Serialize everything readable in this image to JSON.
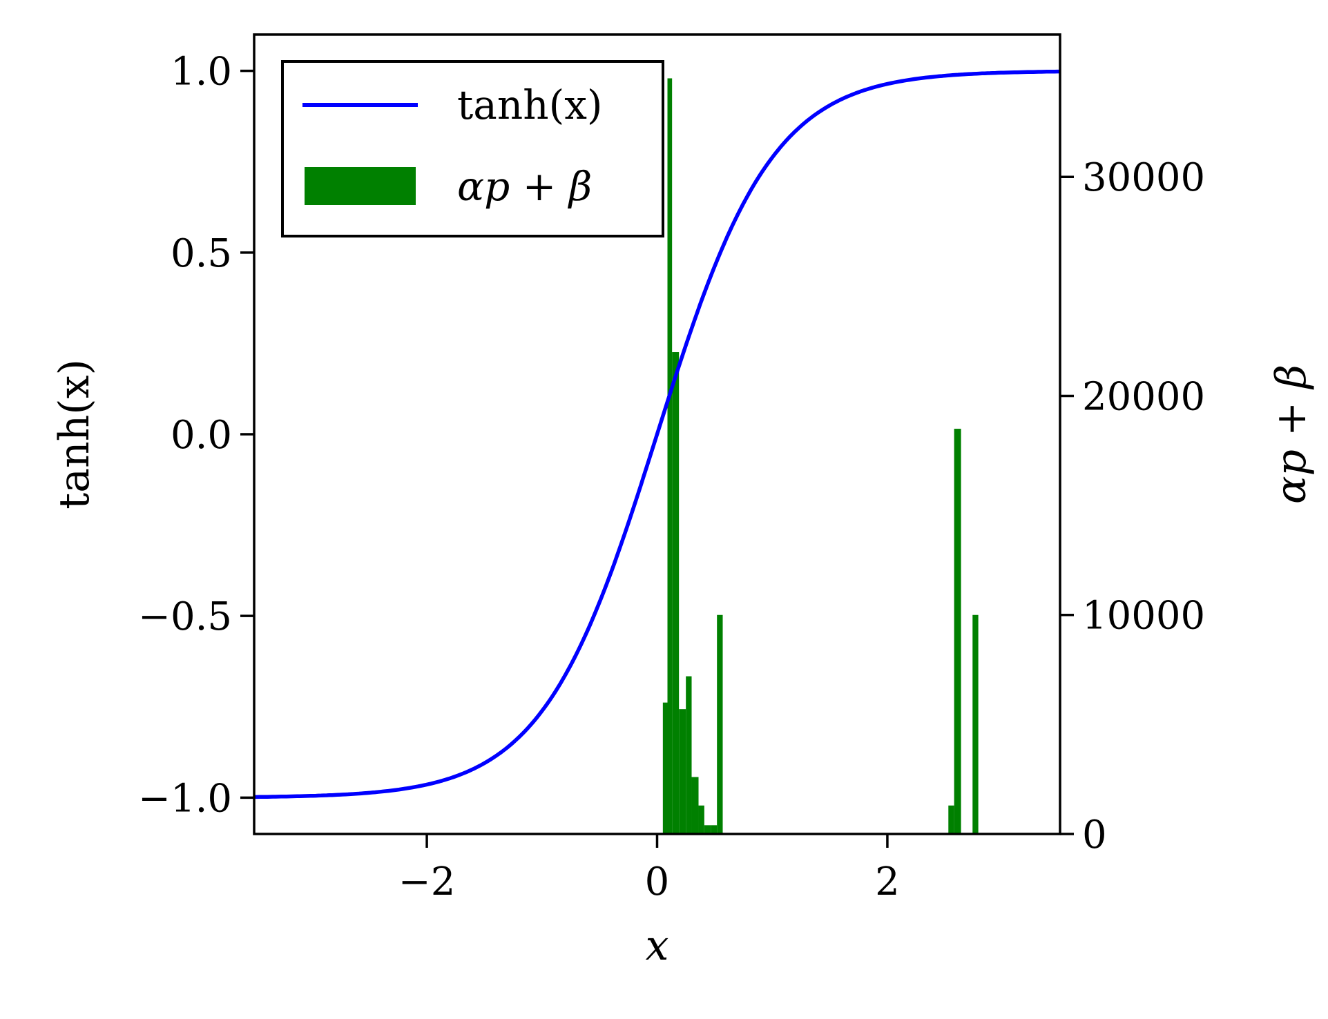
{
  "chart_data": {
    "type": "line+histogram",
    "xlabel": "x",
    "ylabel_left": "tanh(x)",
    "ylabel_right": "αp + β",
    "xlim": [
      -3.5,
      3.5
    ],
    "ylim_left": [
      -1.1,
      1.1
    ],
    "ylim_right": [
      0,
      36500
    ],
    "xticks": [
      -2,
      0,
      2
    ],
    "xtick_labels": [
      "−2",
      "0",
      "2"
    ],
    "yticks_left": [
      -1.0,
      -0.5,
      0.0,
      0.5,
      1.0
    ],
    "ytick_labels_left": [
      "−1.0",
      "−0.5",
      "0.0",
      "0.5",
      "1.0"
    ],
    "yticks_right": [
      0,
      10000,
      20000,
      30000
    ],
    "ytick_labels_right": [
      "0",
      "10000",
      "20000",
      "30000"
    ],
    "legend": {
      "placement": "upper-left",
      "entries": [
        "tanh(x)",
        "αp + β"
      ]
    },
    "colors": {
      "line": "#0000ff",
      "bars": "#008000",
      "axes": "#000000"
    },
    "series": [
      {
        "name": "tanh(x)",
        "kind": "line",
        "axis": "left",
        "function": "tanh",
        "x_range": [
          -3.5,
          3.5
        ]
      },
      {
        "name": "αp + β",
        "kind": "histogram",
        "axis": "right",
        "bins": [
          {
            "x0": 0.05,
            "x1": 0.09,
            "value": 6000
          },
          {
            "x0": 0.09,
            "x1": 0.13,
            "value": 34500
          },
          {
            "x0": 0.13,
            "x1": 0.19,
            "value": 22000
          },
          {
            "x0": 0.19,
            "x1": 0.25,
            "value": 5700
          },
          {
            "x0": 0.25,
            "x1": 0.3,
            "value": 7200
          },
          {
            "x0": 0.3,
            "x1": 0.36,
            "value": 2600
          },
          {
            "x0": 0.36,
            "x1": 0.41,
            "value": 1300
          },
          {
            "x0": 0.41,
            "x1": 0.47,
            "value": 400
          },
          {
            "x0": 0.47,
            "x1": 0.52,
            "value": 400
          },
          {
            "x0": 0.52,
            "x1": 0.57,
            "value": 10000
          },
          {
            "x0": 2.53,
            "x1": 2.58,
            "value": 1300
          },
          {
            "x0": 2.58,
            "x1": 2.64,
            "value": 18500
          },
          {
            "x0": 2.74,
            "x1": 2.79,
            "value": 10000
          }
        ]
      }
    ]
  }
}
